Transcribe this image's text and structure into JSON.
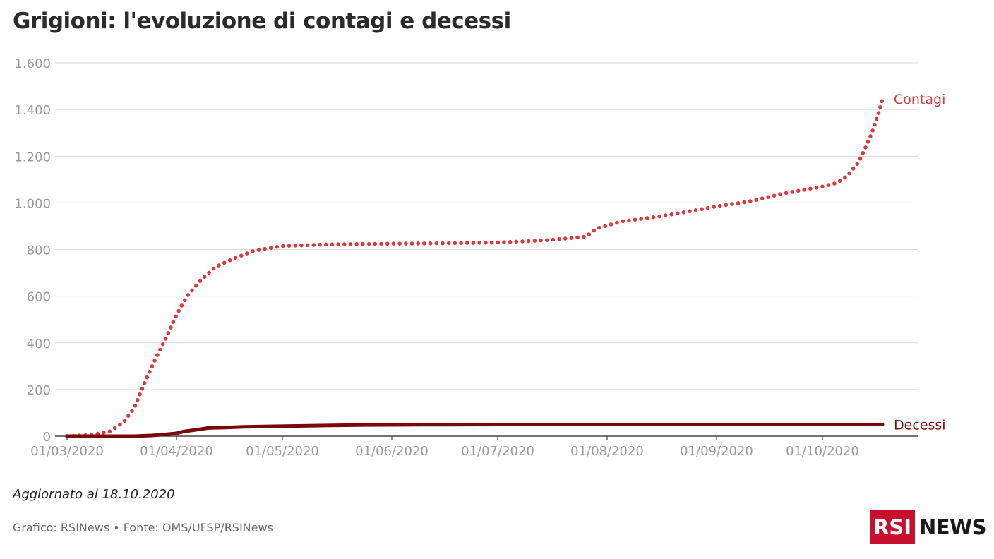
{
  "title": "Grigioni: l'evoluzione di contagi e decessi",
  "updated": "Aggiornato al 18.10.2020",
  "credits": "Grafico: RSINews • Fonte: OMS/UFSP/RSINews",
  "logo": {
    "box_text": "RSI",
    "text": "NEWS",
    "brand_color": "#c8102e"
  },
  "chart_data": {
    "type": "line",
    "title": "Grigioni: l'evoluzione di contagi e decessi",
    "xlabel": "",
    "ylabel": "",
    "x_range": [
      "2020-03-01",
      "2020-10-18"
    ],
    "ylim": [
      0,
      1600
    ],
    "y_ticks": [
      0,
      200,
      400,
      600,
      800,
      1000,
      1200,
      1400,
      1600
    ],
    "y_tick_labels": [
      "0",
      "200",
      "400",
      "600",
      "800",
      "1.000",
      "1.200",
      "1.400",
      "1.600"
    ],
    "x_ticks": [
      "2020-03-01",
      "2020-04-01",
      "2020-05-01",
      "2020-06-01",
      "2020-07-01",
      "2020-08-01",
      "2020-09-01",
      "2020-10-01"
    ],
    "x_tick_labels": [
      "01/03/2020",
      "01/04/2020",
      "01/05/2020",
      "01/06/2020",
      "01/07/2020",
      "01/08/2020",
      "01/09/2020",
      "01/10/2020"
    ],
    "grid": "horizontal",
    "legend": "end-labels",
    "series": [
      {
        "name": "Contagi",
        "color": "#d93a3f",
        "style": "dotted",
        "points": [
          [
            "2020-03-01",
            0
          ],
          [
            "2020-03-08",
            5
          ],
          [
            "2020-03-13",
            20
          ],
          [
            "2020-03-17",
            60
          ],
          [
            "2020-03-20",
            120
          ],
          [
            "2020-03-23",
            230
          ],
          [
            "2020-03-26",
            330
          ],
          [
            "2020-03-29",
            420
          ],
          [
            "2020-04-01",
            520
          ],
          [
            "2020-04-04",
            600
          ],
          [
            "2020-04-08",
            670
          ],
          [
            "2020-04-12",
            725
          ],
          [
            "2020-04-17",
            760
          ],
          [
            "2020-04-23",
            795
          ],
          [
            "2020-05-01",
            815
          ],
          [
            "2020-05-15",
            822
          ],
          [
            "2020-06-01",
            825
          ],
          [
            "2020-06-15",
            827
          ],
          [
            "2020-07-01",
            830
          ],
          [
            "2020-07-15",
            840
          ],
          [
            "2020-07-26",
            855
          ],
          [
            "2020-07-29",
            890
          ],
          [
            "2020-08-05",
            920
          ],
          [
            "2020-08-15",
            940
          ],
          [
            "2020-08-25",
            965
          ],
          [
            "2020-09-01",
            985
          ],
          [
            "2020-09-10",
            1005
          ],
          [
            "2020-09-20",
            1040
          ],
          [
            "2020-10-01",
            1070
          ],
          [
            "2020-10-05",
            1085
          ],
          [
            "2020-10-08",
            1115
          ],
          [
            "2020-10-11",
            1170
          ],
          [
            "2020-10-13",
            1230
          ],
          [
            "2020-10-15",
            1300
          ],
          [
            "2020-10-17",
            1390
          ],
          [
            "2020-10-18",
            1445
          ]
        ]
      },
      {
        "name": "Decessi",
        "color": "#7a0a0a",
        "style": "solid",
        "points": [
          [
            "2020-03-01",
            0
          ],
          [
            "2020-03-20",
            0
          ],
          [
            "2020-03-25",
            3
          ],
          [
            "2020-03-29",
            8
          ],
          [
            "2020-04-01",
            12
          ],
          [
            "2020-04-03",
            20
          ],
          [
            "2020-04-07",
            28
          ],
          [
            "2020-04-10",
            35
          ],
          [
            "2020-04-15",
            37
          ],
          [
            "2020-04-20",
            40
          ],
          [
            "2020-04-27",
            42
          ],
          [
            "2020-05-05",
            44
          ],
          [
            "2020-05-15",
            46
          ],
          [
            "2020-05-25",
            48
          ],
          [
            "2020-06-10",
            49
          ],
          [
            "2020-07-01",
            50
          ],
          [
            "2020-10-18",
            50
          ]
        ]
      }
    ]
  }
}
